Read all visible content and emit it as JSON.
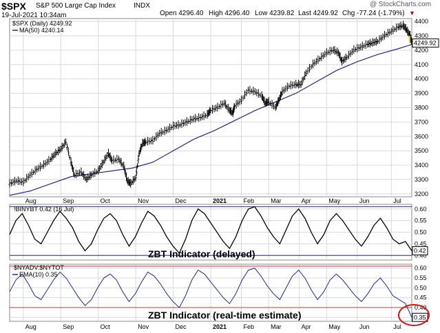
{
  "header": {
    "symbol": "$SPX",
    "name": "S&P 500 Large Cap Index",
    "exchange": "INDX",
    "date": "19-Jul-2021 10:34am",
    "open": "Open 4296.40",
    "high": "High 4296.40",
    "low": "Low 4239.82",
    "last": "Last 4249.92",
    "chg": "Chg -77.24 (-1.79%)",
    "watermark": "@ StockCharts.com",
    "arrow_icon": "down-triangle-icon"
  },
  "colors": {
    "price": "#000000",
    "ma": "#1f2a8c",
    "ema": "#1f2a8c",
    "threshold": "#cc3333",
    "grid": "#d8d8d8",
    "down": "#cc0000",
    "circle": "#dd1111",
    "yellow": "#e6c800"
  },
  "chart_data": [
    {
      "type": "candlestick",
      "legend": [
        "$SPX (Daily) 4249.92",
        "MA(50) 4240.14"
      ],
      "ylim": [
        3180,
        4420
      ],
      "yticks": [
        3200,
        3300,
        3400,
        3500,
        3600,
        3700,
        3800,
        3900,
        4000,
        4100,
        4200,
        4300,
        4400
      ],
      "last_label": "4249.92",
      "x_labels": [
        "Aug",
        "Sep",
        "Oct",
        "Nov",
        "Dec",
        "2021",
        "Feb",
        "Mar",
        "Apr",
        "May",
        "Jun",
        "Jul"
      ],
      "x_positions": [
        0.04,
        0.15,
        0.26,
        0.37,
        0.48,
        0.59,
        0.68,
        0.76,
        0.85,
        0.93,
        1.02,
        1.12
      ],
      "price_path": [
        [
          0.0,
          3270
        ],
        [
          0.02,
          3290
        ],
        [
          0.04,
          3280
        ],
        [
          0.06,
          3330
        ],
        [
          0.08,
          3370
        ],
        [
          0.1,
          3400
        ],
        [
          0.12,
          3440
        ],
        [
          0.135,
          3480
        ],
        [
          0.15,
          3510
        ],
        [
          0.165,
          3560
        ],
        [
          0.18,
          3420
        ],
        [
          0.19,
          3330
        ],
        [
          0.21,
          3350
        ],
        [
          0.225,
          3300
        ],
        [
          0.24,
          3330
        ],
        [
          0.26,
          3360
        ],
        [
          0.275,
          3420
        ],
        [
          0.29,
          3480
        ],
        [
          0.3,
          3430
        ],
        [
          0.32,
          3440
        ],
        [
          0.335,
          3390
        ],
        [
          0.345,
          3290
        ],
        [
          0.355,
          3270
        ],
        [
          0.37,
          3310
        ],
        [
          0.38,
          3480
        ],
        [
          0.39,
          3550
        ],
        [
          0.4,
          3560
        ],
        [
          0.42,
          3570
        ],
        [
          0.44,
          3620
        ],
        [
          0.46,
          3640
        ],
        [
          0.48,
          3670
        ],
        [
          0.5,
          3680
        ],
        [
          0.52,
          3700
        ],
        [
          0.54,
          3720
        ],
        [
          0.56,
          3730
        ],
        [
          0.58,
          3750
        ],
        [
          0.59,
          3780
        ],
        [
          0.61,
          3800
        ],
        [
          0.63,
          3830
        ],
        [
          0.645,
          3780
        ],
        [
          0.655,
          3760
        ],
        [
          0.66,
          3810
        ],
        [
          0.68,
          3850
        ],
        [
          0.7,
          3920
        ],
        [
          0.72,
          3910
        ],
        [
          0.74,
          3880
        ],
        [
          0.75,
          3830
        ],
        [
          0.76,
          3840
        ],
        [
          0.78,
          3800
        ],
        [
          0.79,
          3850
        ],
        [
          0.8,
          3910
        ],
        [
          0.82,
          3950
        ],
        [
          0.84,
          3960
        ],
        [
          0.855,
          3960
        ],
        [
          0.87,
          4040
        ],
        [
          0.89,
          4100
        ],
        [
          0.91,
          4140
        ],
        [
          0.93,
          4180
        ],
        [
          0.95,
          4200
        ],
        [
          0.965,
          4180
        ],
        [
          0.975,
          4120
        ],
        [
          0.99,
          4150
        ],
        [
          1.01,
          4200
        ],
        [
          1.03,
          4220
        ],
        [
          1.05,
          4240
        ],
        [
          1.065,
          4250
        ],
        [
          1.08,
          4260
        ],
        [
          1.1,
          4300
        ],
        [
          1.12,
          4330
        ],
        [
          1.14,
          4360
        ],
        [
          1.155,
          4370
        ],
        [
          1.165,
          4340
        ],
        [
          1.175,
          4300
        ],
        [
          1.18,
          4250
        ]
      ],
      "ma_path": [
        [
          0.0,
          3190
        ],
        [
          0.06,
          3220
        ],
        [
          0.12,
          3270
        ],
        [
          0.18,
          3320
        ],
        [
          0.24,
          3340
        ],
        [
          0.3,
          3360
        ],
        [
          0.36,
          3380
        ],
        [
          0.42,
          3420
        ],
        [
          0.48,
          3500
        ],
        [
          0.54,
          3580
        ],
        [
          0.6,
          3640
        ],
        [
          0.66,
          3710
        ],
        [
          0.72,
          3780
        ],
        [
          0.78,
          3840
        ],
        [
          0.84,
          3900
        ],
        [
          0.9,
          3980
        ],
        [
          0.96,
          4060
        ],
        [
          1.02,
          4120
        ],
        [
          1.08,
          4170
        ],
        [
          1.14,
          4210
        ],
        [
          1.18,
          4240
        ]
      ]
    },
    {
      "type": "line",
      "legend": "!BINYBT 0.42 (16 Jul)",
      "caption": "ZBT Indicator (delayed)",
      "ylim": [
        0.38,
        0.62
      ],
      "yticks": [
        0.4,
        0.45,
        0.5,
        0.55,
        0.6
      ],
      "threshold_lines": [
        0.4,
        0.61
      ],
      "last_label": "0.42",
      "values": [
        0.49,
        0.55,
        0.58,
        0.53,
        0.47,
        0.45,
        0.5,
        0.55,
        0.59,
        0.56,
        0.52,
        0.46,
        0.42,
        0.45,
        0.51,
        0.56,
        0.58,
        0.55,
        0.49,
        0.44,
        0.48,
        0.54,
        0.59,
        0.57,
        0.53,
        0.48,
        0.44,
        0.41,
        0.47,
        0.55,
        0.6,
        0.58,
        0.54,
        0.5,
        0.46,
        0.43,
        0.48,
        0.55,
        0.6,
        0.61,
        0.57,
        0.52,
        0.48,
        0.45,
        0.51,
        0.57,
        0.6,
        0.56,
        0.5,
        0.45,
        0.49,
        0.55,
        0.58,
        0.55,
        0.51,
        0.47,
        0.44,
        0.48,
        0.53,
        0.56,
        0.52,
        0.47,
        0.45,
        0.46,
        0.42
      ]
    },
    {
      "type": "line",
      "legend": [
        "$NYADV:$NYTOT",
        "EMA(10) 0.35"
      ],
      "caption": "ZBT Indicator (real-time estimate)",
      "ylim": [
        0.33,
        0.62
      ],
      "yticks": [
        0.35,
        0.4,
        0.45,
        0.5,
        0.55,
        0.6
      ],
      "threshold_lines": [
        0.4,
        0.61
      ],
      "last_label": "0.35",
      "values": [
        0.48,
        0.54,
        0.57,
        0.52,
        0.46,
        0.44,
        0.49,
        0.54,
        0.58,
        0.55,
        0.5,
        0.45,
        0.41,
        0.44,
        0.5,
        0.55,
        0.57,
        0.54,
        0.48,
        0.43,
        0.47,
        0.53,
        0.58,
        0.56,
        0.52,
        0.47,
        0.43,
        0.4,
        0.46,
        0.54,
        0.59,
        0.57,
        0.53,
        0.49,
        0.45,
        0.42,
        0.47,
        0.54,
        0.59,
        0.6,
        0.56,
        0.51,
        0.47,
        0.44,
        0.5,
        0.56,
        0.59,
        0.55,
        0.49,
        0.44,
        0.48,
        0.54,
        0.57,
        0.54,
        0.5,
        0.46,
        0.43,
        0.47,
        0.52,
        0.55,
        0.51,
        0.46,
        0.44,
        0.42,
        0.35
      ]
    }
  ]
}
